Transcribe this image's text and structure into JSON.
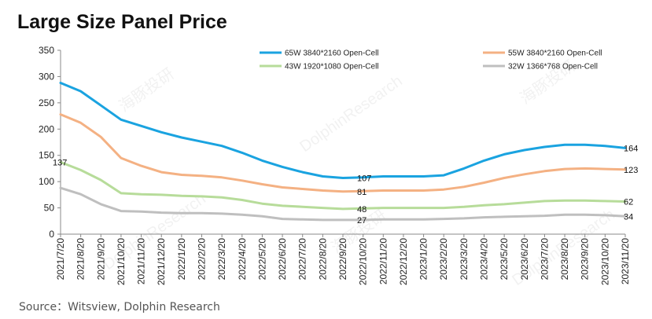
{
  "chart_data": {
    "type": "line",
    "title": "Large Size Panel Price",
    "source": "Source：Witsview, Dolphin Research",
    "ylim": [
      0,
      350
    ],
    "yticks": [
      0,
      50,
      100,
      150,
      200,
      250,
      300,
      350
    ],
    "grid": false,
    "legend_position": "top",
    "categories": [
      "2021/7/20",
      "2021/8/20",
      "2021/9/20",
      "2021/10/20",
      "2021/11/20",
      "2021/12/20",
      "2022/1/20",
      "2022/2/20",
      "2022/3/20",
      "2022/4/20",
      "2022/5/20",
      "2022/6/20",
      "2022/7/20",
      "2022/8/20",
      "2022/9/20",
      "2022/10/20",
      "2022/11/20",
      "2022/12/20",
      "2023/1/20",
      "2023/2/20",
      "2023/3/20",
      "2023/4/20",
      "2023/5/20",
      "2023/6/20",
      "2023/7/20",
      "2023/8/20",
      "2023/9/20",
      "2023/10/20",
      "2023/11/20"
    ],
    "series": [
      {
        "name": "65W 3840*2160 Open-Cell",
        "color": "#1aa3e0",
        "values": [
          288,
          272,
          245,
          218,
          206,
          194,
          184,
          176,
          168,
          155,
          140,
          128,
          118,
          110,
          107,
          108,
          110,
          110,
          110,
          112,
          125,
          140,
          152,
          160,
          166,
          170,
          170,
          168,
          164
        ],
        "end_label": "164",
        "annotation": {
          "index": 14,
          "text": "107"
        }
      },
      {
        "name": "55W 3840*2160 Open-Cell",
        "color": "#f4b183",
        "values": [
          228,
          212,
          185,
          145,
          130,
          118,
          113,
          111,
          108,
          102,
          95,
          89,
          86,
          83,
          81,
          82,
          83,
          83,
          83,
          85,
          90,
          98,
          107,
          114,
          120,
          124,
          125,
          124,
          123
        ],
        "end_label": "123",
        "annotation": {
          "index": 14,
          "text": "81"
        }
      },
      {
        "name": "43W 1920*1080 Open-Cell",
        "color": "#b7dc9a",
        "values": [
          137,
          122,
          103,
          78,
          76,
          75,
          73,
          72,
          70,
          65,
          58,
          54,
          52,
          50,
          48,
          49,
          50,
          50,
          50,
          50,
          52,
          55,
          57,
          60,
          63,
          64,
          64,
          63,
          62
        ],
        "start_label": "137",
        "end_label": "62",
        "annotation": {
          "index": 14,
          "text": "48"
        }
      },
      {
        "name": "32W 1366*768 Open-Cell",
        "color": "#bfbfbf",
        "values": [
          88,
          76,
          57,
          44,
          43,
          41,
          40,
          40,
          39,
          37,
          34,
          29,
          28,
          27,
          27,
          27,
          28,
          28,
          28,
          29,
          30,
          32,
          33,
          34,
          35,
          37,
          37,
          36,
          34
        ],
        "end_label": "34",
        "annotation": {
          "index": 14,
          "text": "27"
        }
      }
    ],
    "watermarks": [
      "海豚投研",
      "DolphinResearch"
    ]
  }
}
